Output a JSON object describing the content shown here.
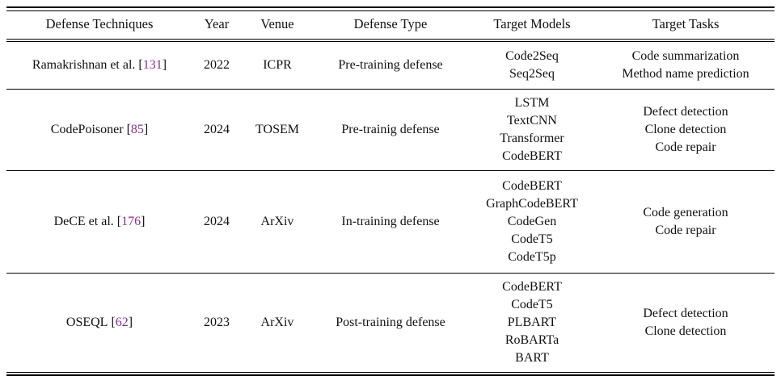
{
  "table": {
    "columns": [
      {
        "key": "technique",
        "label": "Defense Techniques"
      },
      {
        "key": "year",
        "label": "Year"
      },
      {
        "key": "venue",
        "label": "Venue"
      },
      {
        "key": "type",
        "label": "Defense Type"
      },
      {
        "key": "models",
        "label": "Target Models"
      },
      {
        "key": "tasks",
        "label": "Target Tasks"
      }
    ],
    "citation_brackets": {
      "open": "[",
      "close": "]"
    },
    "rows": [
      {
        "technique": "Ramakrishnan et al.",
        "cite": "131",
        "year": "2022",
        "venue": "ICPR",
        "type": "Pre-training defense",
        "models": [
          "Code2Seq",
          "Seq2Seq"
        ],
        "tasks": [
          "Code summarization",
          "Method name prediction"
        ]
      },
      {
        "technique": "CodePoisoner",
        "cite": "85",
        "year": "2024",
        "venue": "TOSEM",
        "type": "Pre-trainig defense",
        "models": [
          "LSTM",
          "TextCNN",
          "Transformer",
          "CodeBERT"
        ],
        "tasks": [
          "Defect detection",
          "Clone detection",
          "Code repair"
        ]
      },
      {
        "technique": "DeCE et al.",
        "cite": "176",
        "year": "2024",
        "venue": "ArXiv",
        "type": "In-training defense",
        "models": [
          "CodeBERT",
          "GraphCodeBERT",
          "CodeGen",
          "CodeT5",
          "CodeT5p"
        ],
        "tasks": [
          "Code generation",
          "Code repair"
        ]
      },
      {
        "technique": "OSEQL",
        "cite": "62",
        "year": "2023",
        "venue": "ArXiv",
        "type": "Post-training defense",
        "models": [
          "CodeBERT",
          "CodeT5",
          "PLBART",
          "RoBARTa",
          "BART"
        ],
        "tasks": [
          "Defect detection",
          "Clone detection"
        ]
      }
    ]
  },
  "colors": {
    "citation": "#8C2D8C",
    "text": "#111111",
    "rule": "#000000"
  }
}
